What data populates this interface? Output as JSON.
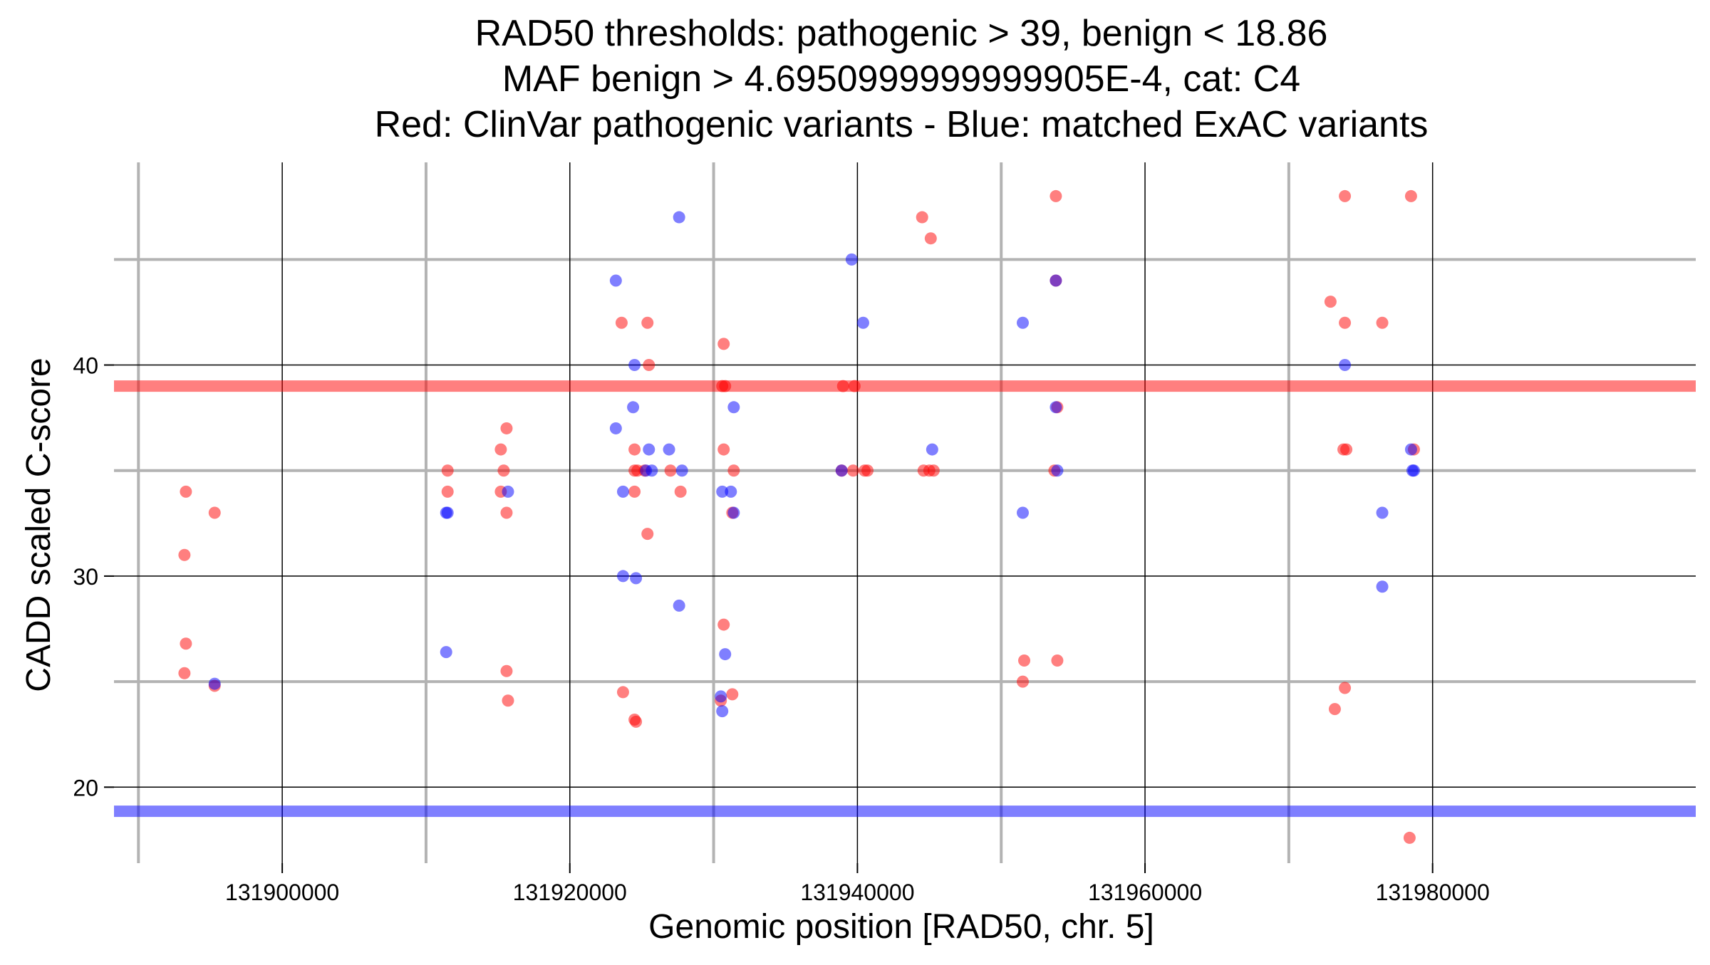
{
  "chart_data": {
    "type": "scatter",
    "title_lines": [
      "RAD50 thresholds: pathogenic > 39, benign < 18.86",
      "MAF benign > 4.6950999999999905E-4, cat: C4",
      "Red: ClinVar pathogenic variants - Blue: matched ExAC variants"
    ],
    "xlabel": "Genomic position [RAD50, chr. 5]",
    "ylabel": "CADD scaled C-score",
    "xlim": [
      131888300,
      131998300
    ],
    "ylim": [
      16.4,
      49.6
    ],
    "x_ticks": [
      131900000,
      131920000,
      131940000,
      131960000,
      131980000
    ],
    "x_tick_labels": [
      "131900000",
      "131920000",
      "131940000",
      "131960000",
      "131980000"
    ],
    "y_ticks": [
      20,
      30,
      40
    ],
    "y_tick_labels": [
      "20",
      "30",
      "40"
    ],
    "x_minor_grid": [
      131890000,
      131910000,
      131930000,
      131950000,
      131970000
    ],
    "y_minor_grid": [
      25,
      35,
      45
    ],
    "grid": true,
    "thresholds": [
      {
        "value": 39,
        "color": "#ff0000"
      },
      {
        "value": 18.86,
        "color": "#0000ff"
      }
    ],
    "series": [
      {
        "color": "#ff0000",
        "points": [
          [
            131893300,
            34
          ],
          [
            131893200,
            31
          ],
          [
            131893300,
            26.8
          ],
          [
            131893200,
            25.4
          ],
          [
            131895300,
            33
          ],
          [
            131895300,
            24.8
          ],
          [
            131911500,
            35
          ],
          [
            131911500,
            34
          ],
          [
            131915200,
            36
          ],
          [
            131915400,
            35
          ],
          [
            131915200,
            34
          ],
          [
            131915600,
            37
          ],
          [
            131915600,
            33
          ],
          [
            131915600,
            25.5
          ],
          [
            131915700,
            24.1
          ],
          [
            131923600,
            42
          ],
          [
            131923700,
            24.5
          ],
          [
            131924500,
            36
          ],
          [
            131924500,
            35
          ],
          [
            131924700,
            35
          ],
          [
            131924500,
            34
          ],
          [
            131924500,
            23.2
          ],
          [
            131924600,
            23.1
          ],
          [
            131925400,
            42
          ],
          [
            131925500,
            40
          ],
          [
            131925200,
            35
          ],
          [
            131925400,
            32
          ],
          [
            131927000,
            35
          ],
          [
            131927700,
            34
          ],
          [
            131930700,
            41
          ],
          [
            131930600,
            39
          ],
          [
            131930800,
            39
          ],
          [
            131930700,
            36
          ],
          [
            131930700,
            27.7
          ],
          [
            131930500,
            24.1
          ],
          [
            131931300,
            24.4
          ],
          [
            131931400,
            35
          ],
          [
            131931300,
            33
          ],
          [
            131939000,
            39
          ],
          [
            131939800,
            39
          ],
          [
            131938900,
            35
          ],
          [
            131939700,
            35
          ],
          [
            131940500,
            35
          ],
          [
            131940700,
            35
          ],
          [
            131944500,
            47
          ],
          [
            131945100,
            46
          ],
          [
            131944600,
            35
          ],
          [
            131945000,
            35
          ],
          [
            131945300,
            35
          ],
          [
            131951600,
            26
          ],
          [
            131951500,
            25
          ],
          [
            131953800,
            48
          ],
          [
            131953800,
            44
          ],
          [
            131953900,
            38
          ],
          [
            131953700,
            35
          ],
          [
            131953900,
            26
          ],
          [
            131972900,
            43
          ],
          [
            131973200,
            23.7
          ],
          [
            131973900,
            48
          ],
          [
            131973900,
            42
          ],
          [
            131973800,
            36
          ],
          [
            131974000,
            36
          ],
          [
            131973900,
            24.7
          ],
          [
            131976500,
            42
          ],
          [
            131978500,
            48
          ],
          [
            131978700,
            36
          ],
          [
            131978400,
            17.6
          ]
        ]
      },
      {
        "color": "#0000ff",
        "points": [
          [
            131895300,
            24.9
          ],
          [
            131911400,
            33
          ],
          [
            131911500,
            33
          ],
          [
            131911400,
            26.4
          ],
          [
            131915700,
            34
          ],
          [
            131923200,
            44
          ],
          [
            131923200,
            37
          ],
          [
            131923700,
            34
          ],
          [
            131923700,
            30
          ],
          [
            131924500,
            40
          ],
          [
            131924400,
            38
          ],
          [
            131924600,
            29.9
          ],
          [
            131925500,
            36
          ],
          [
            131925300,
            35
          ],
          [
            131925700,
            35
          ],
          [
            131926900,
            36
          ],
          [
            131927600,
            47
          ],
          [
            131927800,
            35
          ],
          [
            131927600,
            28.6
          ],
          [
            131930600,
            34
          ],
          [
            131931200,
            34
          ],
          [
            131930800,
            26.3
          ],
          [
            131930500,
            24.3
          ],
          [
            131930600,
            23.6
          ],
          [
            131931400,
            38
          ],
          [
            131931400,
            33
          ],
          [
            131938900,
            35
          ],
          [
            131939600,
            45
          ],
          [
            131940400,
            42
          ],
          [
            131945200,
            36
          ],
          [
            131951500,
            42
          ],
          [
            131951500,
            33
          ],
          [
            131953800,
            44
          ],
          [
            131953800,
            38
          ],
          [
            131953900,
            35
          ],
          [
            131973900,
            40
          ],
          [
            131976500,
            33
          ],
          [
            131976500,
            29.5
          ],
          [
            131978500,
            36
          ],
          [
            131978700,
            35
          ],
          [
            131978600,
            35
          ]
        ]
      }
    ]
  }
}
